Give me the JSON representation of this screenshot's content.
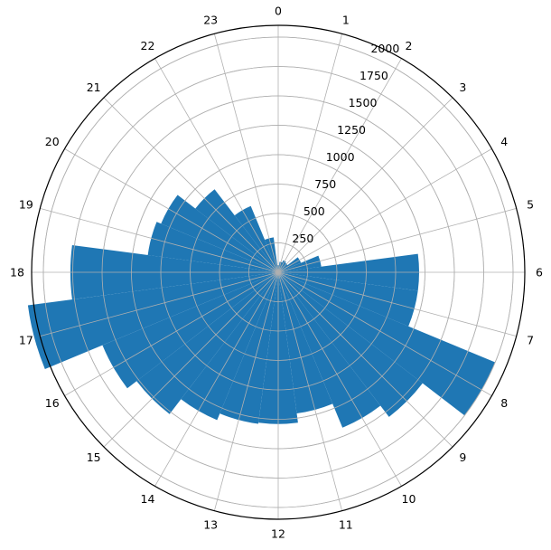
{
  "chart_data": {
    "type": "bar",
    "subtype": "polar",
    "theta_direction": "clockwise",
    "theta_zero": "top",
    "categories": [
      "0",
      "1",
      "2",
      "3",
      "4",
      "5",
      "6",
      "7",
      "8",
      "9",
      "10",
      "11",
      "12",
      "13",
      "14",
      "15",
      "16",
      "17",
      "18",
      "19",
      "20",
      "21",
      "22",
      "23"
    ],
    "values": [
      60,
      90,
      110,
      100,
      210,
      370,
      1200,
      1200,
      2000,
      1550,
      1430,
      1210,
      1290,
      1300,
      1360,
      1520,
      1620,
      2150,
      1770,
      1120,
      1080,
      890,
      610,
      300
    ],
    "radial_ticks": [
      "250",
      "500",
      "750",
      "1000",
      "1250",
      "1500",
      "1750",
      "2000"
    ],
    "radial_tick_values": [
      250,
      500,
      750,
      1000,
      1250,
      1500,
      1750,
      2000
    ],
    "rmax": 2100,
    "grid": true,
    "bar_color": "#1f77b4",
    "title": "",
    "xlabel": "",
    "ylabel": ""
  }
}
